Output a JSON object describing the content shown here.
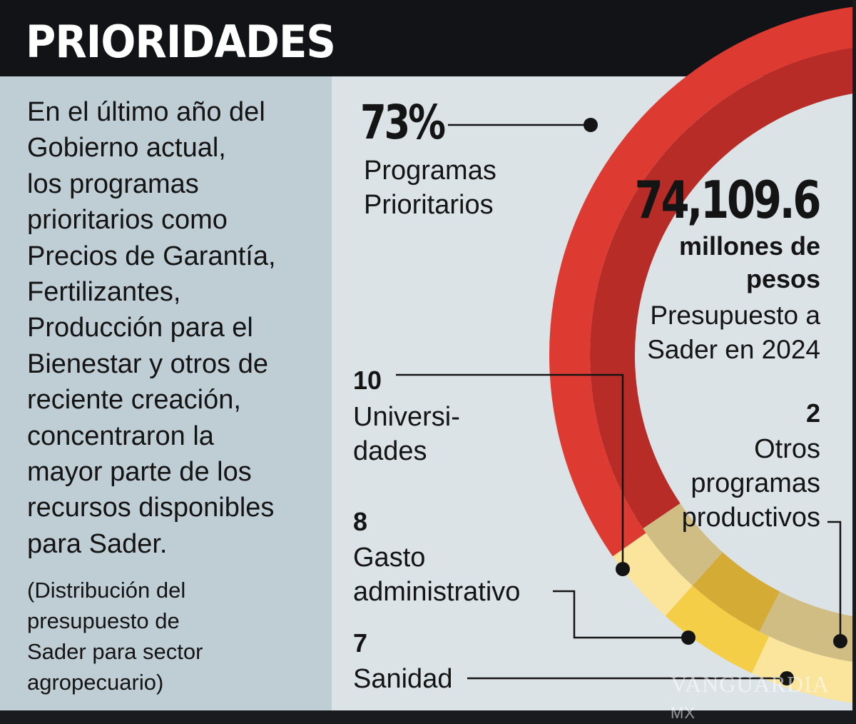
{
  "header": {
    "title": "PRIORIDADES"
  },
  "intro_text": "En el último año del\nGobierno actual,\nlos programas\nprioritarios como\nPrecios de Garantía,\nFertilizantes,\nProducción para el\nBienestar y otros de\nreciente creación,\nconcentraron la\nmayor parte de los\nrecursos disponibles\npara Sader.",
  "note_text": "(Distribución del\npresupuesto de\nSader para sector\nagropecuario)",
  "total": {
    "value": "74,109.6",
    "unit": "millones de\npesos",
    "caption": "Presupuesto a\nSader en 2024"
  },
  "labels": [
    {
      "value": "73%",
      "name": "Programas\nPrioritarios"
    },
    {
      "value": "10",
      "name": "Universi-\ndades"
    },
    {
      "value": "8",
      "name": "Gasto\nadministrativo"
    },
    {
      "value": "7",
      "name": "Sanidad"
    },
    {
      "value": "2",
      "name": "Otros\nprogramas\nproductivos"
    }
  ],
  "watermark": "VANGUARDIA MX",
  "chart_data": {
    "type": "pie",
    "style": "donut",
    "unit": "%",
    "categories": [
      "Programas Prioritarios",
      "Universidades",
      "Gasto administrativo",
      "Sanidad",
      "Otros programas productivos"
    ],
    "values": [
      73,
      10,
      8,
      7,
      2
    ],
    "colors": {
      "red": "#dd3a32",
      "dark_red": "#b82c28",
      "light_yellow": "#fbe49b",
      "gold": "#f5ce47",
      "tan": "#cfbd84",
      "dark_gold": "#d3ab35"
    }
  }
}
